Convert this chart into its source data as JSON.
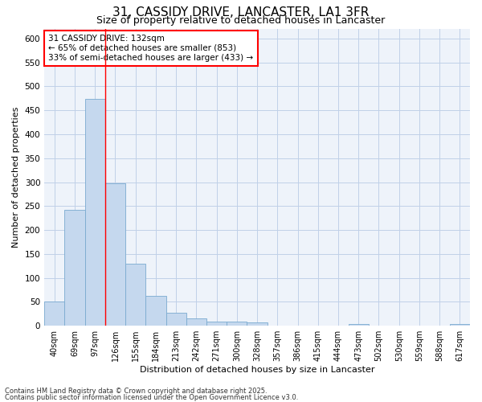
{
  "title": "31, CASSIDY DRIVE, LANCASTER, LA1 3FR",
  "subtitle": "Size of property relative to detached houses in Lancaster",
  "xlabel": "Distribution of detached houses by size in Lancaster",
  "ylabel": "Number of detached properties",
  "bar_labels": [
    "40sqm",
    "69sqm",
    "97sqm",
    "126sqm",
    "155sqm",
    "184sqm",
    "213sqm",
    "242sqm",
    "271sqm",
    "300sqm",
    "328sqm",
    "357sqm",
    "386sqm",
    "415sqm",
    "444sqm",
    "473sqm",
    "502sqm",
    "530sqm",
    "559sqm",
    "588sqm",
    "617sqm"
  ],
  "bar_values": [
    50,
    242,
    474,
    298,
    130,
    63,
    28,
    15,
    8,
    9,
    7,
    0,
    0,
    0,
    0,
    4,
    0,
    0,
    0,
    0,
    4
  ],
  "bar_color": "#c5d8ee",
  "bar_edge_color": "#7aaad0",
  "grid_color": "#c0d0e8",
  "background_color": "#ffffff",
  "plot_bg_color": "#eef3fa",
  "annotation_line1": "31 CASSIDY DRIVE: 132sqm",
  "annotation_line2": "← 65% of detached houses are smaller (853)",
  "annotation_line3": "33% of semi-detached houses are larger (433) →",
  "red_line_x": 2.5,
  "ylim": [
    0,
    620
  ],
  "yticks": [
    0,
    50,
    100,
    150,
    200,
    250,
    300,
    350,
    400,
    450,
    500,
    550,
    600
  ],
  "footnote1": "Contains HM Land Registry data © Crown copyright and database right 2025.",
  "footnote2": "Contains public sector information licensed under the Open Government Licence v3.0."
}
